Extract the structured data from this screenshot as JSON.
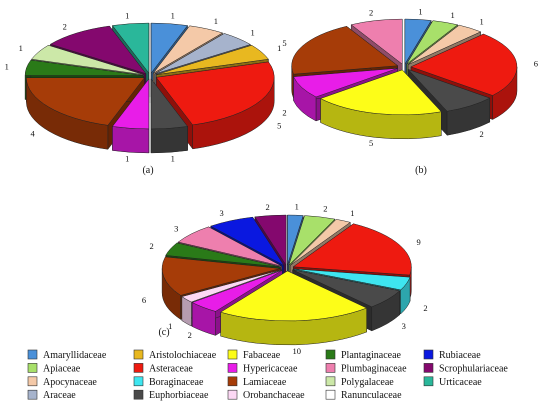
{
  "colors": {
    "Amaryllidaceae": "#4a90d9",
    "Apiaceae": "#a8e06a",
    "Apocynaceae": "#f4c9a8",
    "Araceae": "#a6b3cc",
    "Aristolochiaceae": "#e8b820",
    "Asteraceae": "#ee1a10",
    "Boraginaceae": "#3ee6f0",
    "Euphorbiaceae": "#4a4a4a",
    "Fabaceae": "#fdfd18",
    "Hypericaceae": "#e81de8",
    "Lamiaceae": "#a63c08",
    "Orobanchaceae": "#fcd8f4",
    "Plantaginaceae": "#2a7a18",
    "Plumbaginaceae": "#ee7fae",
    "Polygalaceae": "#cce8a8",
    "Ranunculaceae": "#ffffff",
    "Rubiaceae": "#0a18e0",
    "Scrophulariaceae": "#84086e",
    "Urticaceae": "#2ab79a"
  },
  "legend": [
    [
      "Amaryllidaceae",
      "Aristolochiaceae",
      "Fabaceae",
      "Plantaginaceae",
      "Rubiaceae"
    ],
    [
      "Apiaceae",
      "Asteraceae",
      "Hypericaceae",
      "Plumbaginaceae",
      "Scrophulariaceae"
    ],
    [
      "Apocynaceae",
      "Boraginaceae",
      "Lamiaceae",
      "Polygalaceae",
      "Urticaceae"
    ],
    [
      "Araceae",
      "Euphorbiaceae",
      "Orobanchaceae",
      "Ranunculaceae"
    ]
  ],
  "chart_data": [
    {
      "type": "pie",
      "title": "(a)",
      "slices": [
        {
          "label": "Amaryllidaceae",
          "value": 1
        },
        {
          "label": "Apocynaceae",
          "value": 1
        },
        {
          "label": "Araceae",
          "value": 1
        },
        {
          "label": "Aristolochiaceae",
          "value": 1
        },
        {
          "label": "Asteraceae",
          "value": 5
        },
        {
          "label": "Euphorbiaceae",
          "value": 1
        },
        {
          "label": "Hypericaceae",
          "value": 1
        },
        {
          "label": "Lamiaceae",
          "value": 4
        },
        {
          "label": "Plantaginaceae",
          "value": 1
        },
        {
          "label": "Polygalaceae",
          "value": 1
        },
        {
          "label": "Scrophulariaceae",
          "value": 2
        },
        {
          "label": "Urticaceae",
          "value": 1
        }
      ]
    },
    {
      "type": "pie",
      "title": "(b)",
      "slices": [
        {
          "label": "Amaryllidaceae",
          "value": 1
        },
        {
          "label": "Apiaceae",
          "value": 1
        },
        {
          "label": "Apocynaceae",
          "value": 1
        },
        {
          "label": "Asteraceae",
          "value": 6
        },
        {
          "label": "Euphorbiaceae",
          "value": 2
        },
        {
          "label": "Fabaceae",
          "value": 5
        },
        {
          "label": "Hypericaceae",
          "value": 2
        },
        {
          "label": "Lamiaceae",
          "value": 5
        },
        {
          "label": "Plumbaginaceae",
          "value": 2
        }
      ]
    },
    {
      "type": "pie",
      "title": "(c)",
      "slices": [
        {
          "label": "Amaryllidaceae",
          "value": 1
        },
        {
          "label": "Apiaceae",
          "value": 2
        },
        {
          "label": "Apocynaceae",
          "value": 1
        },
        {
          "label": "Asteraceae",
          "value": 9
        },
        {
          "label": "Boraginaceae",
          "value": 2
        },
        {
          "label": "Euphorbiaceae",
          "value": 3
        },
        {
          "label": "Fabaceae",
          "value": 10
        },
        {
          "label": "Hypericaceae",
          "value": 2
        },
        {
          "label": "Orobanchaceae",
          "value": 1
        },
        {
          "label": "Lamiaceae",
          "value": 6
        },
        {
          "label": "Plantaginaceae",
          "value": 2
        },
        {
          "label": "Plumbaginaceae",
          "value": 3
        },
        {
          "label": "Rubiaceae",
          "value": 3
        },
        {
          "label": "Scrophulariaceae",
          "value": 2
        }
      ]
    }
  ]
}
